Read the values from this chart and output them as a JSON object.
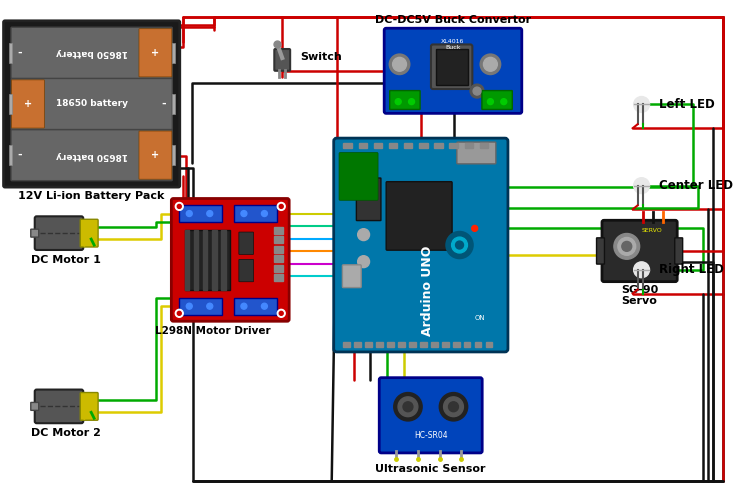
{
  "bg_color": "#ffffff",
  "wire_colors": {
    "red": "#cc0000",
    "black": "#111111",
    "green": "#00aa00",
    "yellow": "#ddcc00",
    "blue": "#3355bb",
    "cyan": "#00bbbb",
    "purple": "#8800cc",
    "orange": "#ff6600",
    "white": "#dddddd"
  },
  "labels": {
    "battery": "12V Li-ion Battery Pack",
    "motor1": "DC Motor 1",
    "motor2": "DC Motor 2",
    "driver": "L298N Motor Driver",
    "arduino": "Arduino UNO",
    "switch": "Switch",
    "buck": "DC-DC5V Buck Convertor",
    "ultrasonic": "Ultrasonic Sensor",
    "servo_label": "SG-90\nServo",
    "left_led": "Left LED",
    "center_led": "Center LED",
    "right_led": "Right LED"
  }
}
